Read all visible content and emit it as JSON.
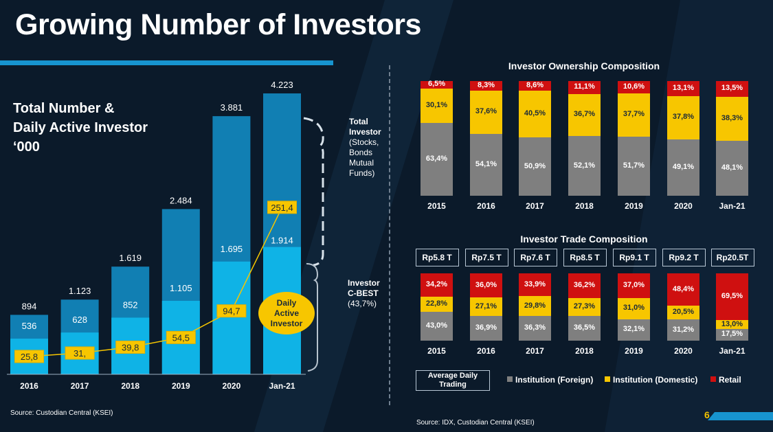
{
  "title": "Growing Number of Investors",
  "subtitle": {
    "line1": "Total Number &",
    "line2": "Daily Active Investor",
    "line3": "‘000"
  },
  "colors": {
    "total": "#117fb3",
    "cbest": "#0fb3e6",
    "daily": "#f7c600",
    "foreign": "#7f7f7f",
    "domestic": "#f7c600",
    "retail": "#cf1010",
    "background": "#0b1a2a"
  },
  "side_labels": {
    "total_title": "Total",
    "total_title2": "Investor",
    "total_detail1": "(Stocks,",
    "total_detail2": "Bonds",
    "total_detail3": "Mutual",
    "total_detail4": "Funds)",
    "cbest_title1": "Investor",
    "cbest_title2": "C-BEST",
    "cbest_pct": "(43,7%)"
  },
  "daily_active_badge": {
    "line1": "Daily",
    "line2": "Active",
    "line3": "Investor"
  },
  "chart_data": [
    {
      "type": "bar",
      "id": "investors",
      "title": "Total Number & Daily Active Investor ‘000",
      "categories": [
        "2016",
        "2017",
        "2018",
        "2019",
        "2020",
        "Jan-21"
      ],
      "series": [
        {
          "name": "Total Investor",
          "values": [
            894,
            1123,
            1619,
            2484,
            3881,
            4223
          ],
          "labels": [
            "894",
            "1.123",
            "1.619",
            "2.484",
            "3.881",
            "4.223"
          ]
        },
        {
          "name": "Investor C-BEST",
          "values": [
            536,
            628,
            852,
            1105,
            1695,
            1914
          ],
          "labels": [
            "536",
            "628",
            "852",
            "1.105",
            "1.695",
            "1.914"
          ]
        },
        {
          "name": "Daily Active Investor",
          "type": "line",
          "values": [
            25.8,
            31,
            39.8,
            54.5,
            94.7,
            251.4
          ],
          "labels": [
            "25,8",
            "31,",
            "39,8",
            "54,5",
            "94,7",
            "251,4"
          ]
        }
      ],
      "ylim": [
        0,
        4500
      ]
    },
    {
      "type": "bar",
      "id": "ownership",
      "stacked": true,
      "title": "Investor Ownership Composition",
      "categories": [
        "2015",
        "2016",
        "2017",
        "2018",
        "2019",
        "2020",
        "Jan-21"
      ],
      "series": [
        {
          "name": "Institution (Foreign)",
          "values": [
            63.4,
            54.1,
            50.9,
            52.1,
            51.7,
            49.1,
            48.1
          ],
          "labels": [
            "63,4%",
            "54,1%",
            "50,9%",
            "52,1%",
            "51,7%",
            "49,1%",
            "48,1%"
          ]
        },
        {
          "name": "Institution (Domestic)",
          "values": [
            30.1,
            37.6,
            40.5,
            36.7,
            37.7,
            37.8,
            38.3
          ],
          "labels": [
            "30,1%",
            "37,6%",
            "40,5%",
            "36,7%",
            "37,7%",
            "37,8%",
            "38,3%"
          ]
        },
        {
          "name": "Retail",
          "values": [
            6.5,
            8.3,
            8.6,
            11.1,
            10.6,
            13.1,
            13.5
          ],
          "labels": [
            "6,5%",
            "8,3%",
            "8,6%",
            "11,1%",
            "10,6%",
            "13,1%",
            "13,5%"
          ]
        }
      ],
      "ylim": [
        0,
        100
      ]
    },
    {
      "type": "bar",
      "id": "trade",
      "stacked": true,
      "title": "Investor Trade Composition",
      "categories": [
        "2015",
        "2016",
        "2017",
        "2018",
        "2019",
        "2020",
        "Jan-21"
      ],
      "average_daily_trading": [
        "Rp5.8 T",
        "Rp7.5 T",
        "Rp7.6 T",
        "Rp8.5 T",
        "Rp9.1 T",
        "Rp9.2 T",
        "Rp20.5T"
      ],
      "series": [
        {
          "name": "Institution (Foreign)",
          "values": [
            43.0,
            36.9,
            36.3,
            36.5,
            32.1,
            31.2,
            17.5
          ],
          "labels": [
            "43,0%",
            "36,9%",
            "36,3%",
            "36,5%",
            "32,1%",
            "31,2%",
            "17,5%"
          ]
        },
        {
          "name": "Institution (Domestic)",
          "values": [
            22.8,
            27.1,
            29.8,
            27.3,
            31.0,
            20.5,
            13.0
          ],
          "labels": [
            "22,8%",
            "27,1%",
            "29,8%",
            "27,3%",
            "31,0%",
            "20,5%",
            "13,0%"
          ]
        },
        {
          "name": "Retail",
          "values": [
            34.2,
            36.0,
            33.9,
            36.2,
            37.0,
            48.4,
            69.5
          ],
          "labels": [
            "34,2%",
            "36,0%",
            "33,9%",
            "36,2%",
            "37,0%",
            "48,4%",
            "69,5%"
          ]
        }
      ],
      "ylim": [
        0,
        100
      ]
    }
  ],
  "legend": {
    "avg_label1": "Average Daily",
    "avg_label2": "Trading",
    "foreign": "Institution (Foreign)",
    "domestic": "Institution (Domestic)",
    "retail": "Retail"
  },
  "sources": {
    "left": "Source: Custodian Central (KSEI)",
    "right": "Source: IDX, Custodian Central (KSEI)"
  },
  "page_number": "6"
}
